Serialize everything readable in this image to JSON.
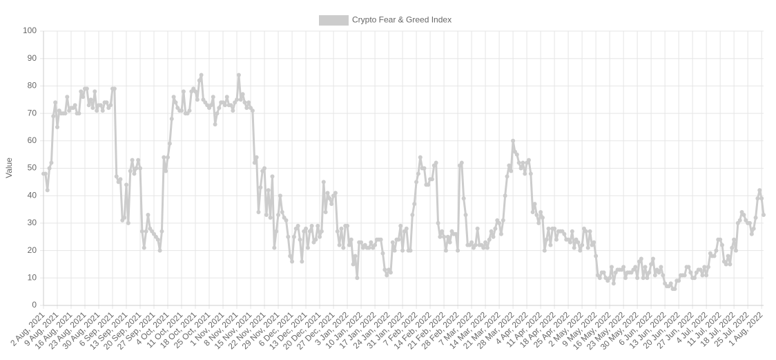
{
  "chart_data": {
    "type": "line",
    "legend": "top",
    "grid": true,
    "ylabel": "Value",
    "ylim": [
      0,
      100
    ],
    "yticks": [
      0,
      10,
      20,
      30,
      40,
      50,
      60,
      70,
      80,
      90,
      100
    ],
    "categories": [
      "2 Aug, 2021",
      null,
      null,
      null,
      null,
      null,
      null,
      "9 Aug, 2021",
      null,
      null,
      null,
      null,
      null,
      null,
      "16 Aug, 2021",
      null,
      null,
      null,
      null,
      null,
      null,
      "23 Aug, 2021",
      null,
      null,
      null,
      null,
      null,
      null,
      "30 Aug, 2021",
      null,
      null,
      null,
      null,
      null,
      null,
      "6 Sep, 2021",
      null,
      null,
      null,
      null,
      null,
      null,
      "13 Sep, 2021",
      null,
      null,
      null,
      null,
      null,
      null,
      "20 Sep, 2021",
      null,
      null,
      null,
      null,
      null,
      null,
      "27 Sep, 2021",
      null,
      null,
      null,
      null,
      null,
      null,
      "4 Oct, 2021",
      null,
      null,
      null,
      null,
      null,
      null,
      "11 Oct, 2021",
      null,
      null,
      null,
      null,
      null,
      null,
      "18 Oct, 2021",
      null,
      null,
      null,
      null,
      null,
      null,
      "25 Oct, 2021",
      null,
      null,
      null,
      null,
      null,
      null,
      "1 Nov, 2021",
      null,
      null,
      null,
      null,
      null,
      null,
      "8 Nov, 2021",
      null,
      null,
      null,
      null,
      null,
      null,
      "15 Nov, 2021",
      null,
      null,
      null,
      null,
      null,
      null,
      "22 Nov, 2021",
      null,
      null,
      null,
      null,
      null,
      null,
      "29 Nov, 2021",
      null,
      null,
      null,
      null,
      null,
      null,
      "6 Dec, 2021",
      null,
      null,
      null,
      null,
      null,
      null,
      "13 Dec, 2021",
      null,
      null,
      null,
      null,
      null,
      null,
      "20 Dec, 2021",
      null,
      null,
      null,
      null,
      null,
      null,
      "27 Dec, 2021",
      null,
      null,
      null,
      null,
      null,
      null,
      "3 Jan, 2022",
      null,
      null,
      null,
      null,
      null,
      null,
      "10 Jan, 2022",
      null,
      null,
      null,
      null,
      null,
      null,
      "17 Jan, 2022",
      null,
      null,
      null,
      null,
      null,
      null,
      "24 Jan, 2022",
      null,
      null,
      null,
      null,
      null,
      null,
      "31 Jan, 2022",
      null,
      null,
      null,
      null,
      null,
      null,
      "7 Feb, 2022",
      null,
      null,
      null,
      null,
      null,
      null,
      "14 Feb, 2022",
      null,
      null,
      null,
      null,
      null,
      null,
      "21 Feb, 2022",
      null,
      null,
      null,
      null,
      null,
      null,
      "28 Feb, 2022",
      null,
      null,
      null,
      null,
      null,
      null,
      "7 Mar, 2022",
      null,
      null,
      null,
      null,
      null,
      null,
      "14 Mar, 2022",
      null,
      null,
      null,
      null,
      null,
      null,
      "21 Mar, 2022",
      null,
      null,
      null,
      null,
      null,
      null,
      "28 Mar, 2022",
      null,
      null,
      null,
      null,
      null,
      null,
      "4 Apr, 2022",
      null,
      null,
      null,
      null,
      null,
      null,
      "11 Apr, 2022",
      null,
      null,
      null,
      null,
      null,
      null,
      "18 Apr, 2022",
      null,
      null,
      null,
      null,
      null,
      null,
      "25 Apr, 2022",
      null,
      null,
      null,
      null,
      null,
      null,
      "2 May, 2022",
      null,
      null,
      null,
      null,
      null,
      null,
      "9 May, 2022",
      null,
      null,
      null,
      null,
      null,
      null,
      "16 May, 2022",
      null,
      null,
      null,
      null,
      null,
      null,
      "23 May, 2022",
      null,
      null,
      null,
      null,
      null,
      null,
      "30 May, 2022",
      null,
      null,
      null,
      null,
      null,
      null,
      "6 Jun, 2022",
      null,
      null,
      null,
      null,
      null,
      null,
      "13 Jun, 2022",
      null,
      null,
      null,
      null,
      null,
      null,
      "20 Jun, 2022",
      null,
      null,
      null,
      null,
      null,
      null,
      "27 Jun, 2022",
      null,
      null,
      null,
      null,
      null,
      null,
      "4 Jul, 2022",
      null,
      null,
      null,
      null,
      null,
      null,
      "11 Jul, 2022",
      null,
      null,
      null,
      null,
      null,
      null,
      "18 Jul, 2022",
      null,
      null,
      null,
      null,
      null,
      null,
      "25 Jul, 2022",
      null,
      null,
      null,
      null,
      null,
      null,
      "1 Aug, 2022",
      null
    ],
    "series": [
      {
        "name": "Crypto Fear & Greed Index",
        "color": "#cccccc",
        "values": [
          48,
          48,
          42,
          50,
          52,
          69,
          74,
          65,
          71,
          70,
          70,
          70,
          76,
          71,
          72,
          72,
          73,
          70,
          70,
          78,
          76,
          79,
          79,
          73,
          75,
          72,
          78,
          71,
          73,
          73,
          71,
          74,
          74,
          72,
          73,
          79,
          79,
          47,
          45,
          46,
          31,
          32,
          44,
          30,
          49,
          53,
          48,
          50,
          53,
          50,
          27,
          21,
          27,
          33,
          28,
          27,
          26,
          25,
          24,
          20,
          27,
          54,
          49,
          54,
          59,
          68,
          76,
          74,
          72,
          71,
          71,
          78,
          70,
          70,
          71,
          78,
          79,
          78,
          75,
          82,
          84,
          75,
          74,
          73,
          72,
          73,
          76,
          66,
          70,
          72,
          74,
          74,
          73,
          76,
          73,
          73,
          71,
          74,
          75,
          84,
          75,
          77,
          74,
          72,
          74,
          72,
          71,
          52,
          54,
          34,
          43,
          49,
          50,
          33,
          42,
          32,
          47,
          21,
          27,
          33,
          40,
          34,
          32,
          31,
          25,
          18,
          16,
          25,
          28,
          29,
          24,
          16,
          27,
          28,
          21,
          27,
          29,
          23,
          24,
          29,
          25,
          27,
          45,
          34,
          41,
          39,
          37,
          40,
          41,
          27,
          22,
          28,
          21,
          29,
          29,
          22,
          24,
          15,
          18,
          10,
          23,
          23,
          21,
          22,
          21,
          21,
          23,
          21,
          22,
          24,
          24,
          24,
          19,
          13,
          11,
          13,
          12,
          23,
          20,
          24,
          24,
          29,
          20,
          27,
          28,
          20,
          20,
          33,
          37,
          45,
          48,
          54,
          50,
          50,
          44,
          44,
          46,
          46,
          51,
          52,
          30,
          25,
          27,
          25,
          20,
          25,
          23,
          27,
          26,
          26,
          20,
          51,
          52,
          39,
          33,
          22,
          22,
          23,
          21,
          22,
          28,
          22,
          22,
          21,
          23,
          21,
          24,
          27,
          25,
          28,
          31,
          30,
          26,
          31,
          40,
          47,
          51,
          49,
          60,
          56,
          55,
          52,
          50,
          52,
          48,
          52,
          53,
          48,
          34,
          37,
          33,
          30,
          34,
          32,
          20,
          24,
          28,
          22,
          28,
          28,
          24,
          27,
          27,
          27,
          26,
          24,
          24,
          23,
          27,
          21,
          24,
          23,
          20,
          22,
          28,
          27,
          21,
          27,
          22,
          23,
          18,
          11,
          10,
          12,
          12,
          10,
          9,
          10,
          14,
          8,
          12,
          13,
          13,
          13,
          14,
          10,
          12,
          12,
          12,
          13,
          14,
          10,
          16,
          17,
          10,
          14,
          10,
          12,
          15,
          17,
          11,
          13,
          12,
          14,
          11,
          8,
          7,
          7,
          8,
          6,
          6,
          9,
          9,
          11,
          11,
          11,
          14,
          14,
          12,
          10,
          10,
          12,
          13,
          13,
          11,
          14,
          11,
          14,
          19,
          18,
          18,
          20,
          24,
          24,
          22,
          16,
          15,
          18,
          15,
          21,
          24,
          20,
          30,
          31,
          34,
          33,
          31,
          30,
          30,
          26,
          28,
          32,
          39,
          42,
          39,
          33
        ]
      }
    ]
  }
}
